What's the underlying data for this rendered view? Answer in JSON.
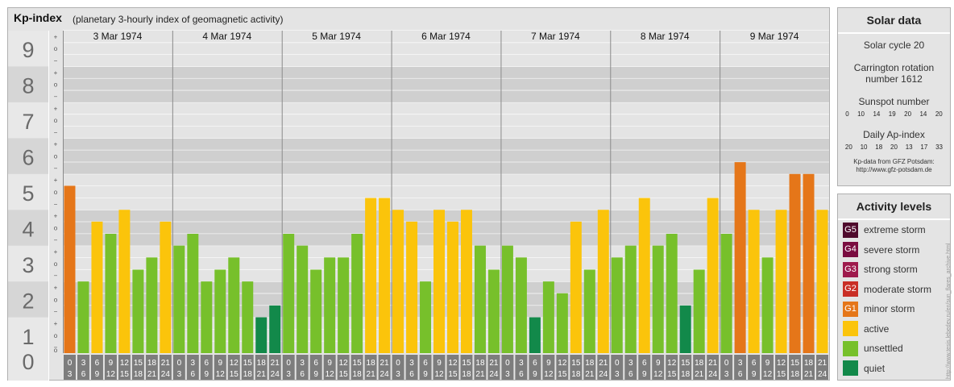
{
  "title": "Kp-index",
  "subtitle": "(planetary 3-hourly index of geomagnetic activity)",
  "chart_data": {
    "type": "bar",
    "title": "Kp-index",
    "subtitle": "(planetary 3-hourly index of geomagnetic activity)",
    "ylim": [
      0,
      9
    ],
    "y_ticks": [
      "0",
      "1",
      "2",
      "3",
      "4",
      "5",
      "6",
      "7",
      "8",
      "9"
    ],
    "sub_ticks": [
      "−",
      "o",
      "+"
    ],
    "days": [
      "3 Mar 1974",
      "4 Mar 1974",
      "5 Mar 1974",
      "6 Mar 1974",
      "7 Mar 1974",
      "8 Mar 1974",
      "9 Mar 1974"
    ],
    "interval_top": [
      "0",
      "3",
      "6",
      "9",
      "12",
      "15",
      "18",
      "21"
    ],
    "interval_bottom": [
      "3",
      "6",
      "9",
      "12",
      "15",
      "18",
      "21",
      "24"
    ],
    "values": [
      [
        4.67,
        2,
        3.67,
        3.33,
        4,
        2.33,
        2.67,
        3.67
      ],
      [
        3,
        3.33,
        2,
        2.33,
        2.67,
        2,
        1,
        1.33
      ],
      [
        3.33,
        3,
        2.33,
        2.67,
        2.67,
        3.33,
        4.33,
        4.33
      ],
      [
        4,
        3.67,
        2,
        4,
        3.67,
        4,
        3,
        2.33
      ],
      [
        3,
        2.67,
        1,
        2,
        1.67,
        3.67,
        2.33,
        4
      ],
      [
        2.67,
        3,
        4.33,
        3,
        3.33,
        1.33,
        2.33,
        4.33
      ],
      [
        3.33,
        5.33,
        4,
        2.67,
        4,
        5,
        5,
        4
      ]
    ],
    "colors": {
      "quiet": "#12894a",
      "unsettled": "#77c02b",
      "active": "#fbc40b",
      "minor_storm": "#e57619"
    }
  },
  "solar": {
    "header": "Solar data",
    "cycle": "Solar cycle 20",
    "carrington_1": "Carrington rotation",
    "carrington_2": "number 1612",
    "sunspot_label": "Sunspot number",
    "sunspot_values": [
      "0",
      "10",
      "14",
      "19",
      "20",
      "14",
      "20"
    ],
    "ap_label": "Daily Ap-index",
    "ap_values": [
      "20",
      "10",
      "18",
      "20",
      "13",
      "17",
      "33"
    ],
    "source_1": "Kp-data from GFZ Potsdam:",
    "source_2": "http://www.gfz-potsdam.de"
  },
  "activity": {
    "header": "Activity levels",
    "levels": [
      {
        "code": "G5",
        "label": "extreme storm",
        "color": "#4f0a2c"
      },
      {
        "code": "G4",
        "label": "severe storm",
        "color": "#7a0c40"
      },
      {
        "code": "G3",
        "label": "strong storm",
        "color": "#9e1a4c"
      },
      {
        "code": "G2",
        "label": "moderate storm",
        "color": "#c92e25"
      },
      {
        "code": "G1",
        "label": "minor storm",
        "color": "#e57619"
      },
      {
        "code": "",
        "label": "active",
        "color": "#fbc40b"
      },
      {
        "code": "",
        "label": "unsettled",
        "color": "#77c02b"
      },
      {
        "code": "",
        "label": "quiet",
        "color": "#12894a"
      }
    ]
  },
  "watermark": "http://www.tesis.lebedev.ru/en/sun_flares_archive.html"
}
